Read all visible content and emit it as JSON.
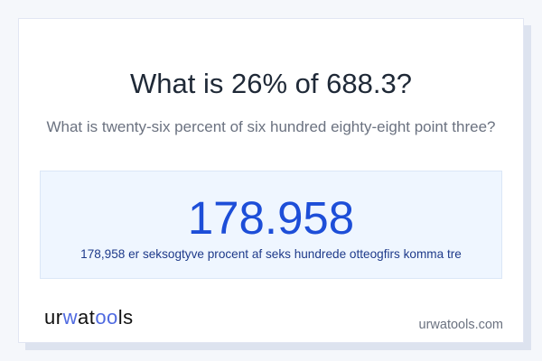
{
  "question": {
    "title": "What is 26% of 688.3?",
    "subtitle": "What is twenty-six percent of six hundred eighty-eight point three?"
  },
  "result": {
    "value": "178.958",
    "words": "178,958 er seksogtyve procent af seks hundrede otteogfirs komma tre"
  },
  "footer": {
    "logo": "urwatools",
    "logo_parts": [
      "ur",
      "w",
      "at",
      "oo",
      "ls"
    ],
    "domain": "urwatools.com"
  },
  "colors": {
    "accent": "#1d4ed8",
    "result_bg": "#eff6ff",
    "logo_accent": "#4f6ae0"
  }
}
